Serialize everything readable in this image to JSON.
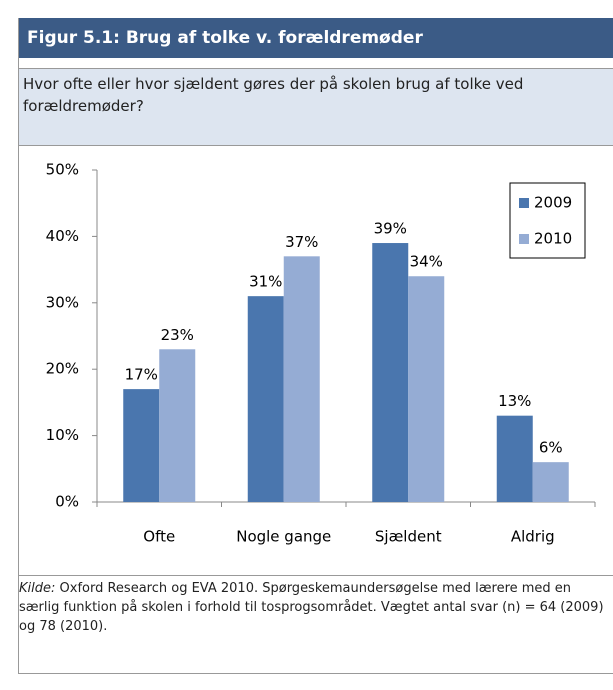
{
  "header": {
    "title": "Figur 5.1: Brug af tolke v. forældremøder"
  },
  "question": "Hvor ofte eller hvor sjældent gøres der på skolen brug af tolke ved forældremøder?",
  "chart_data": {
    "type": "bar",
    "categories": [
      "Ofte",
      "Nogle gange",
      "Sjældent",
      "Aldrig"
    ],
    "series": [
      {
        "name": "2009",
        "color": "#4a76ae",
        "values": [
          17,
          31,
          39,
          13
        ],
        "value_labels": [
          "17%",
          "31%",
          "39%",
          "13%"
        ]
      },
      {
        "name": "2010",
        "color": "#95acd4",
        "values": [
          23,
          37,
          34,
          6
        ],
        "value_labels": [
          "23%",
          "37%",
          "34%",
          "6%"
        ]
      }
    ],
    "ylim": [
      0,
      50
    ],
    "yticks": [
      {
        "value": 0,
        "label": "0%"
      },
      {
        "value": 10,
        "label": "10%"
      },
      {
        "value": 20,
        "label": "20%"
      },
      {
        "value": 30,
        "label": "30%"
      },
      {
        "value": 40,
        "label": "40%"
      },
      {
        "value": 50,
        "label": "50%"
      }
    ],
    "legend": "upper right"
  },
  "source": {
    "label": "Kilde:",
    "text": "Oxford Research og EVA 2010. Spørgeskemaundersøgelse med lærere med en særlig funktion på skolen i forhold til tosprogsområdet. Vægtet antal svar (n) = 64 (2009) og 78 (2010)."
  }
}
